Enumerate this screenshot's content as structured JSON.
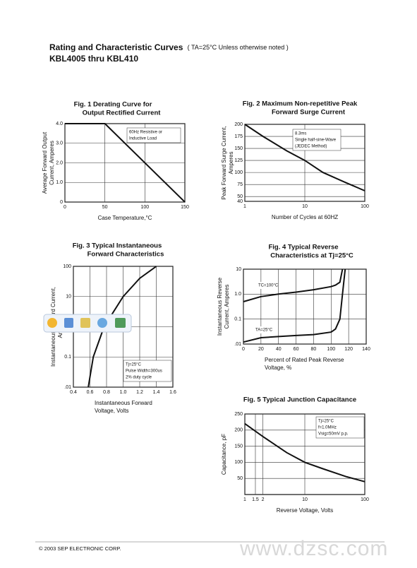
{
  "header": {
    "title": "Rating and Characteristic Curves",
    "note": "( TA=25°C Unless otherwise noted )",
    "subtitle": "KBL4005 thru KBL410"
  },
  "chart_data": [
    {
      "type": "line",
      "title": [
        "Fig. 1 Derating Curve for",
        "Output Rectified Current"
      ],
      "ylabel": [
        "Average Forward Output",
        "Current, Amperes"
      ],
      "xlabel": [
        "Case Temperature,°C"
      ],
      "annotation": [
        "60Hz Resistive or",
        "Inductive Load"
      ],
      "xlim": [
        0,
        150
      ],
      "xticks": [
        0,
        50,
        100,
        150
      ],
      "ylim": [
        0,
        4
      ],
      "yticks": [
        0,
        {
          "value": 1,
          "label": "1.0"
        },
        {
          "value": 2,
          "label": "2.0"
        },
        {
          "value": 3,
          "label": "3.0"
        },
        {
          "value": 4,
          "label": "4.0"
        }
      ],
      "grid": true,
      "x": [
        0,
        50,
        150
      ],
      "series": [
        {
          "color": "#111111",
          "values": [
            4,
            4,
            0
          ]
        }
      ]
    },
    {
      "type": "line",
      "title": [
        "Fig. 2 Maximum Non-repetitive Peak",
        "Forward Surge Current"
      ],
      "ylabel": [
        "Peak Forward Surge Current,",
        "Amperes"
      ],
      "xlabel": [
        "Number of Cycles at 60HZ"
      ],
      "annotation": [
        "8.3ms",
        "Single half-sine-Wave",
        "(JEDEC Method)"
      ],
      "xscale": "log",
      "xlim": [
        1,
        100
      ],
      "xticks": [
        1,
        10,
        100
      ],
      "ylim": [
        40,
        200
      ],
      "yticks": [
        40,
        50,
        75,
        100,
        125,
        150,
        175,
        200
      ],
      "grid": true,
      "x": [
        1,
        2,
        5,
        10,
        20,
        50,
        100
      ],
      "series": [
        {
          "color": "#111111",
          "values": [
            200,
            175,
            145,
            125,
            100,
            78,
            62
          ]
        }
      ]
    },
    {
      "type": "line",
      "title": [
        "Fig. 3 Typical Instantaneous",
        "Forward Characteristics"
      ],
      "ylabel": [
        "Instantaneous Forward Current,",
        "Amperes"
      ],
      "xlabel": [
        "Instantaneous Forward",
        "Voltage, Volts"
      ],
      "annotation": [
        "Tj=25°C",
        "Pulse Width=300us",
        "2% duty cycle"
      ],
      "yscale": "log",
      "xlim": [
        0.4,
        1.6
      ],
      "xticks": [
        0.4,
        0.6,
        0.8,
        {
          "value": 1,
          "label": "1.0"
        },
        1.2,
        1.4,
        1.6
      ],
      "ylim": [
        0.01,
        100
      ],
      "yticks": [
        {
          "value": 0.01,
          "label": ".01"
        },
        0.1,
        {
          "value": 1,
          "label": "1.0"
        },
        10,
        100
      ],
      "grid": true,
      "x": [
        0.58,
        0.64,
        0.77,
        1.0,
        1.2,
        1.4
      ],
      "series": [
        {
          "color": "#111111",
          "values": [
            0.01,
            0.1,
            1,
            10,
            40,
            100
          ]
        }
      ]
    },
    {
      "type": "line",
      "title": [
        "Fig. 4 Typical Reverse",
        "Characteristics at Tj=25°C"
      ],
      "ylabel": [
        "Instantaneous Reverse",
        "Current, Amperes"
      ],
      "xlabel": [
        "Percent of Rated Peak Reverse",
        "Voltage, %"
      ],
      "yscale": "log",
      "xlim": [
        0,
        140
      ],
      "xticks": [
        0,
        20,
        40,
        60,
        80,
        100,
        120,
        140
      ],
      "ylim": [
        0.01,
        10
      ],
      "yticks": [
        {
          "value": 0.01,
          "label": ".01"
        },
        0.1,
        {
          "value": 1,
          "label": "1.0"
        },
        10
      ],
      "grid": true,
      "x": [
        0,
        20,
        40,
        60,
        80,
        100,
        105,
        110,
        113,
        116
      ],
      "series": [
        {
          "name": "TC=100°C",
          "color": "#111111",
          "values": [
            0.5,
            0.8,
            1.0,
            1.2,
            1.5,
            2.0,
            2.3,
            3,
            10,
            null
          ]
        },
        {
          "name": "TA=25°C",
          "color": "#111111",
          "values": [
            0.012,
            0.018,
            0.02,
            0.022,
            0.024,
            0.03,
            0.04,
            0.1,
            1,
            10
          ]
        }
      ]
    },
    {
      "type": "line",
      "title": [
        "Fig. 5 Typical Junction Capacitance"
      ],
      "ylabel": [
        "Capacitance, pF"
      ],
      "xlabel": [
        "Reverse Voltage, Volts"
      ],
      "annotation": [
        "Tj=25°C",
        "f=1.0MHz",
        "Vsig=50mV p.p."
      ],
      "xscale": "log",
      "xlim": [
        1,
        100
      ],
      "xticks": [
        1,
        1.5,
        2,
        10,
        100
      ],
      "ylim": [
        0,
        250
      ],
      "yticks": [
        50,
        100,
        150,
        200,
        250
      ],
      "grid": true,
      "x": [
        1,
        2,
        5,
        10,
        20,
        50,
        100
      ],
      "series": [
        {
          "color": "#111111",
          "values": [
            220,
            180,
            130,
            100,
            80,
            55,
            40
          ]
        }
      ]
    }
  ],
  "footer": {
    "text": "© 2003  SEP ELECTRONIC CORP."
  },
  "watermark": "www.dzsc.com"
}
